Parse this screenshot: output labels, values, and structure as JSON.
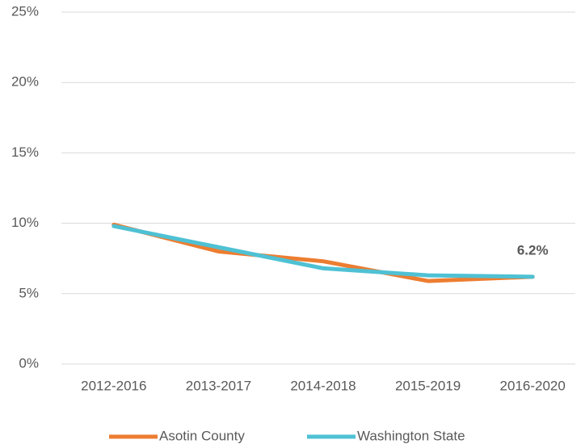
{
  "chart_data": {
    "type": "line",
    "categories": [
      "2012-2016",
      "2013-2017",
      "2014-2018",
      "2015-2019",
      "2016-2020"
    ],
    "series": [
      {
        "name": "Asotin County",
        "color": "#ed7d31",
        "values": [
          9.9,
          8.0,
          7.3,
          5.9,
          6.2
        ],
        "value_labels": [
          null,
          null,
          null,
          null,
          "6.2%"
        ]
      },
      {
        "name": "Washington State",
        "color": "#4fc1d4",
        "values": [
          9.8,
          8.3,
          6.8,
          6.3,
          6.2
        ]
      }
    ],
    "ylim": [
      0,
      25
    ],
    "yticks": [
      {
        "value": 0,
        "label": "0%"
      },
      {
        "value": 5,
        "label": "5%"
      },
      {
        "value": 10,
        "label": "10%"
      },
      {
        "value": 15,
        "label": "15%"
      },
      {
        "value": 20,
        "label": "20%"
      },
      {
        "value": 25,
        "label": "25%"
      }
    ],
    "grid": true,
    "legend": "bottom"
  }
}
